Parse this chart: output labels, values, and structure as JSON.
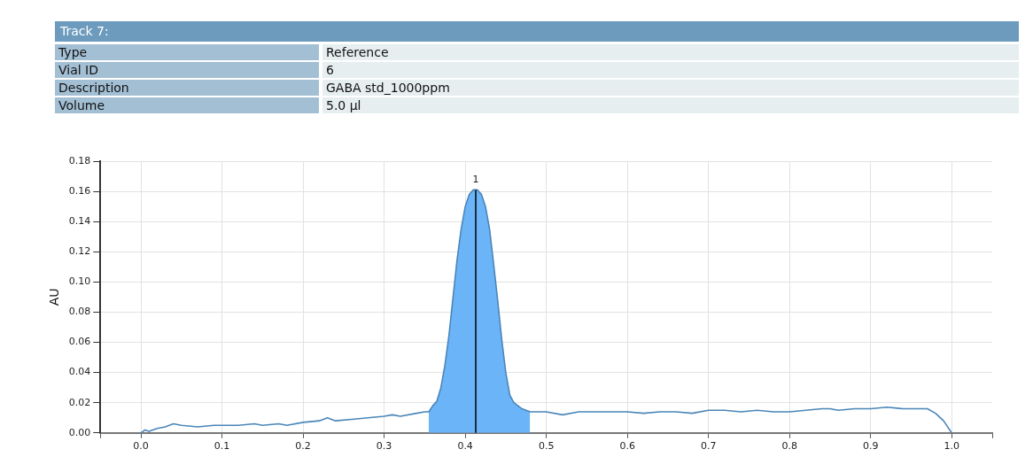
{
  "chart_data": {
    "type": "line",
    "title": "Track 7:",
    "annotations": [
      "Type",
      "Reference",
      "Vial ID",
      "6",
      "Description",
      "GABA std_1000ppm",
      "Volume",
      "5.0 µl",
      {
        "text": "1",
        "x": 0.413,
        "y": 0.161
      }
    ],
    "ylabel": "AU",
    "x": [
      0,
      0.005,
      0.01,
      0.02,
      0.03,
      0.04,
      0.05,
      0.07,
      0.09,
      0.1,
      0.12,
      0.14,
      0.15,
      0.17,
      0.18,
      0.2,
      0.22,
      0.23,
      0.24,
      0.26,
      0.28,
      0.3,
      0.31,
      0.32,
      0.34,
      0.35,
      0.355,
      0.36,
      0.365,
      0.37,
      0.375,
      0.38,
      0.385,
      0.39,
      0.395,
      0.4,
      0.405,
      0.41,
      0.415,
      0.42,
      0.425,
      0.43,
      0.435,
      0.44,
      0.445,
      0.45,
      0.455,
      0.46,
      0.465,
      0.47,
      0.48,
      0.49,
      0.5,
      0.52,
      0.54,
      0.56,
      0.58,
      0.6,
      0.62,
      0.64,
      0.66,
      0.68,
      0.7,
      0.72,
      0.74,
      0.76,
      0.78,
      0.8,
      0.82,
      0.84,
      0.85,
      0.86,
      0.88,
      0.9,
      0.92,
      0.94,
      0.96,
      0.97,
      0.98,
      0.99,
      1.0
    ],
    "series": [
      {
        "color": "#4a86b8",
        "values": [
          0,
          0.002,
          0.001,
          0.003,
          0.004,
          0.006,
          0.005,
          0.004,
          0.005,
          0.005,
          0.005,
          0.006,
          0.005,
          0.006,
          0.005,
          0.007,
          0.008,
          0.01,
          0.008,
          0.009,
          0.01,
          0.011,
          0.012,
          0.011,
          0.013,
          0.014,
          0.014,
          0.018,
          0.021,
          0.03,
          0.045,
          0.065,
          0.09,
          0.115,
          0.135,
          0.15,
          0.158,
          0.161,
          0.161,
          0.158,
          0.15,
          0.135,
          0.112,
          0.088,
          0.062,
          0.04,
          0.025,
          0.02,
          0.018,
          0.016,
          0.014,
          0.014,
          0.014,
          0.012,
          0.014,
          0.014,
          0.014,
          0.014,
          0.013,
          0.014,
          0.014,
          0.013,
          0.015,
          0.015,
          0.014,
          0.015,
          0.014,
          0.014,
          0.015,
          0.016,
          0.016,
          0.015,
          0.016,
          0.016,
          0.017,
          0.016,
          0.016,
          0.016,
          0.013,
          0.008,
          0
        ]
      },
      {
        "type": "area",
        "color": "#6cb4f8",
        "x": [
          0.355,
          0.36,
          0.365,
          0.37,
          0.375,
          0.38,
          0.385,
          0.39,
          0.395,
          0.4,
          0.405,
          0.41,
          0.415,
          0.42,
          0.425,
          0.43,
          0.435,
          0.44,
          0.445,
          0.45,
          0.455,
          0.46,
          0.465,
          0.47,
          0.48
        ],
        "values": [
          0.014,
          0.018,
          0.021,
          0.03,
          0.045,
          0.065,
          0.09,
          0.115,
          0.135,
          0.15,
          0.158,
          0.161,
          0.161,
          0.158,
          0.15,
          0.135,
          0.112,
          0.088,
          0.062,
          0.04,
          0.025,
          0.02,
          0.018,
          0.016,
          0.014
        ]
      }
    ],
    "xlim": [
      -0.05,
      1.05
    ],
    "xticks": [
      {
        "value": -0.05,
        "label": null
      },
      {
        "value": 0,
        "label": "0.0"
      },
      {
        "value": 0.1,
        "label": "0.1"
      },
      {
        "value": 0.2,
        "label": "0.2"
      },
      {
        "value": 0.3,
        "label": "0.3"
      },
      {
        "value": 0.4,
        "label": "0.4"
      },
      {
        "value": 0.5,
        "label": "0.5"
      },
      {
        "value": 0.6,
        "label": "0.6"
      },
      {
        "value": 0.7,
        "label": "0.7"
      },
      {
        "value": 0.8,
        "label": "0.8"
      },
      {
        "value": 0.9,
        "label": "0.9"
      },
      {
        "value": 1,
        "label": "1.0"
      },
      {
        "value": 1.05,
        "label": null
      }
    ],
    "ylim": [
      0,
      0.18
    ],
    "yticks": [
      {
        "value": 0,
        "label": "0.00"
      },
      {
        "value": 0.02,
        "label": "0.02"
      },
      {
        "value": 0.04,
        "label": "0.04"
      },
      {
        "value": 0.06,
        "label": "0.06"
      },
      {
        "value": 0.08,
        "label": "0.08"
      },
      {
        "value": 0.1,
        "label": "0.10"
      },
      {
        "value": 0.12,
        "label": "0.12"
      },
      {
        "value": 0.14,
        "label": "0.14"
      },
      {
        "value": 0.16,
        "label": "0.16"
      },
      {
        "value": 0.18,
        "label": "0.18"
      }
    ],
    "ref_lines": [
      {
        "axis": "x",
        "value": 0.413,
        "color": "#000000"
      }
    ],
    "grid": true,
    "legend": false,
    "marker": "none",
    "line_style": "solid"
  }
}
